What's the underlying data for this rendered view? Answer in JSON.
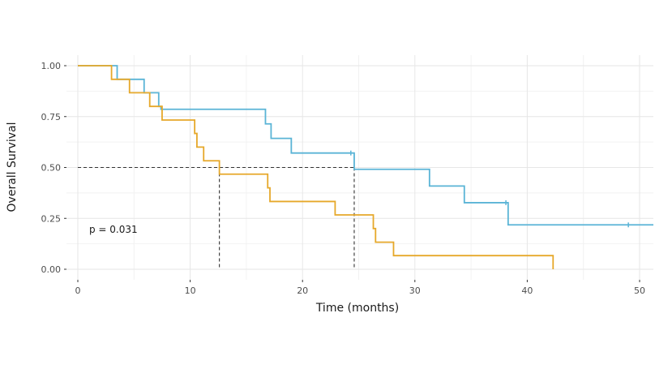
{
  "chart_data": {
    "type": "line",
    "subtype": "kaplan-meier step curve",
    "xlabel": "Time (months)",
    "ylabel": "Overall Survival",
    "xlim": [
      -5,
      51.5
    ],
    "ylim": [
      -0.05,
      1.05
    ],
    "x_ticks": [
      0,
      10,
      20,
      30,
      40,
      50
    ],
    "y_ticks": [
      0.0,
      0.25,
      0.5,
      0.75,
      1.0
    ],
    "x_tick_labels": [
      "0",
      "10",
      "20",
      "30",
      "40",
      "50"
    ],
    "y_tick_labels": [
      "0.00",
      "0.25",
      "0.50",
      "0.75",
      "1.00"
    ],
    "grid": true,
    "annotation": "p = 0.031",
    "series": [
      {
        "color": "#5ab4d6",
        "steps": [
          [
            0,
            1.0
          ],
          [
            3.5,
            0.933
          ],
          [
            5.9,
            0.867
          ],
          [
            7.2,
            0.8
          ],
          [
            7.4,
            0.786
          ],
          [
            16.7,
            0.714
          ],
          [
            17.2,
            0.643
          ],
          [
            19.0,
            0.571
          ],
          [
            24.6,
            0.491
          ],
          [
            31.3,
            0.409
          ],
          [
            34.4,
            0.327
          ],
          [
            38.3,
            0.218
          ]
        ],
        "end_x": 51.5,
        "censors": [
          [
            24.3,
            0.571
          ],
          [
            38.1,
            0.327
          ],
          [
            49.0,
            0.218
          ]
        ],
        "median": 24.6
      },
      {
        "color": "#e6a82a",
        "steps": [
          [
            0,
            1.0
          ],
          [
            3.0,
            0.933
          ],
          [
            4.6,
            0.867
          ],
          [
            6.4,
            0.8
          ],
          [
            7.5,
            0.733
          ],
          [
            10.4,
            0.667
          ],
          [
            10.6,
            0.6
          ],
          [
            11.2,
            0.533
          ],
          [
            12.6,
            0.467
          ],
          [
            16.9,
            0.4
          ],
          [
            17.1,
            0.333
          ],
          [
            22.9,
            0.267
          ],
          [
            26.3,
            0.2
          ],
          [
            26.5,
            0.133
          ],
          [
            28.1,
            0.067
          ],
          [
            42.3,
            0.0
          ]
        ],
        "end_x": 42.3,
        "censors": [],
        "median": 12.6
      }
    ],
    "median_line_y": 0.5
  }
}
